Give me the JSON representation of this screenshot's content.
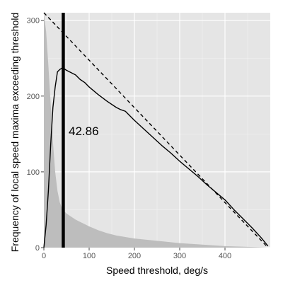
{
  "chart_data": {
    "type": "line",
    "title": "",
    "xlabel": "Speed threshold, deg/s",
    "ylabel": "Frequency of local speed maxima exceeding threshold",
    "xlim": [
      0,
      500
    ],
    "ylim": [
      0,
      310
    ],
    "x_ticks": [
      0,
      100,
      200,
      300,
      400
    ],
    "y_ticks": [
      0,
      100,
      200,
      300
    ],
    "grid": true,
    "legend": "none",
    "colors": {
      "panel_background": "#e5e5e5",
      "grid_major": "#ffffff",
      "grid_minor": "#f2f2f2",
      "histogram": "#bdbdbd",
      "line": "#000000"
    },
    "threshold_annotation": {
      "x": 42.86,
      "label": "42.86"
    },
    "histogram": {
      "x": [
        0,
        5,
        10,
        15,
        20,
        25,
        30,
        35,
        40,
        45,
        50,
        60,
        70,
        80,
        90,
        100,
        120,
        140,
        160,
        180,
        200,
        250,
        300,
        350,
        400,
        450,
        495
      ],
      "y": [
        310,
        285,
        240,
        190,
        140,
        100,
        75,
        60,
        52,
        48,
        45,
        41,
        37,
        34,
        31,
        28,
        23,
        19,
        16,
        14,
        12,
        9,
        6,
        4,
        2,
        1,
        0
      ]
    },
    "series": [
      {
        "style": "solid",
        "x": [
          0,
          5,
          10,
          15,
          20,
          25,
          30,
          35,
          40,
          45,
          50,
          60,
          70,
          80,
          90,
          100,
          120,
          140,
          160,
          170,
          180,
          200,
          220,
          240,
          260,
          280,
          300,
          320,
          340,
          360,
          380,
          400,
          420,
          440,
          460,
          480,
          495
        ],
        "y": [
          0,
          30,
          75,
          135,
          185,
          212,
          232,
          235,
          237,
          236,
          234,
          231,
          228,
          222,
          218,
          212,
          202,
          193,
          185,
          182,
          180,
          168,
          157,
          146,
          135,
          125,
          114,
          104,
          94,
          83,
          73,
          63,
          50,
          38,
          26,
          13,
          2
        ]
      },
      {
        "style": "dashed",
        "x": [
          0,
          495
        ],
        "y": [
          310,
          0
        ]
      }
    ]
  }
}
